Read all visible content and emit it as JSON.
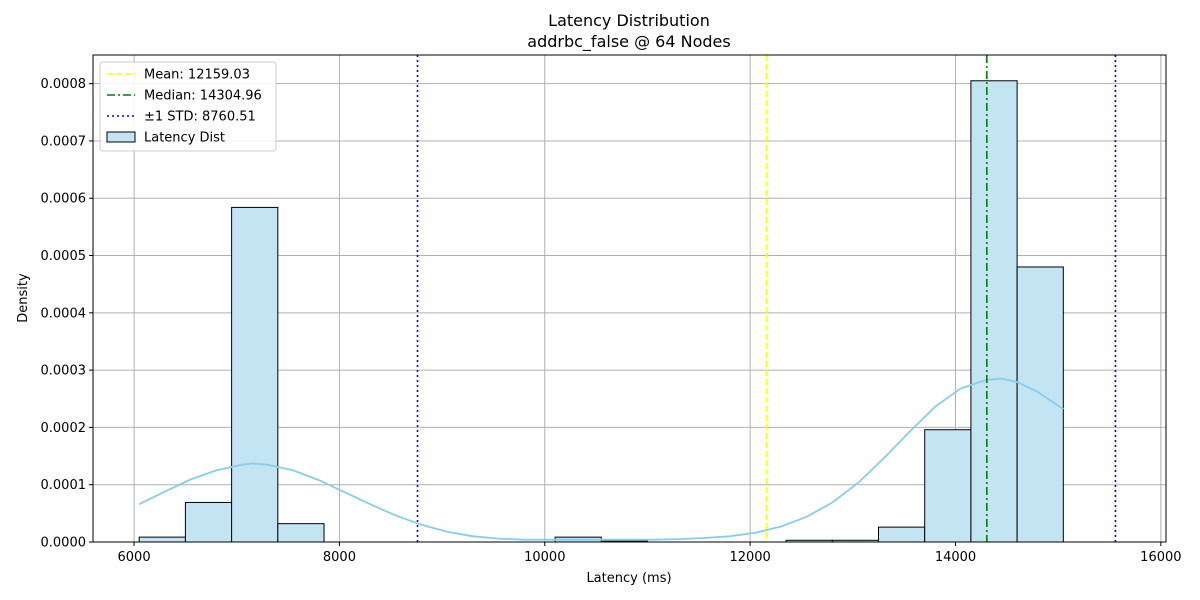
{
  "chart_data": {
    "type": "bar",
    "title": "Latency Distribution",
    "subtitle": "addrbc_false @ 64 Nodes",
    "xlabel": "Latency (ms)",
    "ylabel": "Density",
    "xlim": [
      5600,
      16050
    ],
    "ylim": [
      0,
      0.00085
    ],
    "xticks": [
      6000,
      8000,
      10000,
      12000,
      14000,
      16000
    ],
    "xtick_labels": [
      "6000",
      "8000",
      "10000",
      "12000",
      "14000",
      "16000"
    ],
    "yticks": [
      0,
      0.0001,
      0.0002,
      0.0003,
      0.0004,
      0.0005,
      0.0006,
      0.0007,
      0.0008
    ],
    "ytick_labels": [
      "0.0000",
      "0.0001",
      "0.0002",
      "0.0003",
      "0.0004",
      "0.0005",
      "0.0006",
      "0.0007",
      "0.0008"
    ],
    "grid": true,
    "legend_position": "top-left",
    "histogram": {
      "name": "Latency Dist",
      "fill_color": "#c2e4f3",
      "edge_color": "#000000",
      "bins": [
        {
          "x0": 6050,
          "x1": 6500,
          "density": 8.5e-06
        },
        {
          "x0": 6500,
          "x1": 6950,
          "density": 6.9e-05
        },
        {
          "x0": 6950,
          "x1": 7400,
          "density": 0.000584
        },
        {
          "x0": 7400,
          "x1": 7850,
          "density": 3.2e-05
        },
        {
          "x0": 7850,
          "x1": 8300,
          "density": 0
        },
        {
          "x0": 8300,
          "x1": 8750,
          "density": 0
        },
        {
          "x0": 8750,
          "x1": 9200,
          "density": 0
        },
        {
          "x0": 9200,
          "x1": 9650,
          "density": 0
        },
        {
          "x0": 9650,
          "x1": 10100,
          "density": 0
        },
        {
          "x0": 10100,
          "x1": 10550,
          "density": 8.5e-06
        },
        {
          "x0": 10550,
          "x1": 11000,
          "density": 1.5e-06
        },
        {
          "x0": 11000,
          "x1": 11450,
          "density": 0
        },
        {
          "x0": 11450,
          "x1": 11900,
          "density": 0
        },
        {
          "x0": 11900,
          "x1": 12350,
          "density": 0
        },
        {
          "x0": 12350,
          "x1": 12800,
          "density": 3e-06
        },
        {
          "x0": 12800,
          "x1": 13250,
          "density": 3e-06
        },
        {
          "x0": 13250,
          "x1": 13700,
          "density": 2.6e-05
        },
        {
          "x0": 13700,
          "x1": 14150,
          "density": 0.000196
        },
        {
          "x0": 14150,
          "x1": 14600,
          "density": 0.000805
        },
        {
          "x0": 14600,
          "x1": 15050,
          "density": 0.00048
        }
      ]
    },
    "kde": {
      "color": "#87ceeb",
      "x": [
        6050,
        6300,
        6550,
        6800,
        7050,
        7150,
        7300,
        7550,
        7800,
        8050,
        8300,
        8550,
        8800,
        9050,
        9300,
        9550,
        9800,
        10050,
        10300,
        10550,
        10800,
        11050,
        11300,
        11550,
        11800,
        12050,
        12300,
        12550,
        12800,
        13050,
        13300,
        13550,
        13800,
        14050,
        14300,
        14450,
        14600,
        14800,
        15050
      ],
      "y": [
        6.6e-05,
        8.8e-05,
        0.000109,
        0.000125,
        0.000135,
        0.000137,
        0.000135,
        0.000125,
        0.000108,
        8.7e-05,
        6.6e-05,
        4.6e-05,
        3e-05,
        1.8e-05,
        1e-05,
        6e-06,
        4e-06,
        4e-06,
        4e-06,
        4e-06,
        4e-06,
        4e-06,
        5e-06,
        7e-06,
        1e-05,
        1.6e-05,
        2.7e-05,
        4.4e-05,
        6.9e-05,
        0.000103,
        0.000146,
        0.000192,
        0.000236,
        0.000268,
        0.000283,
        0.000285,
        0.000279,
        0.000262,
        0.000232
      ]
    },
    "lines": [
      {
        "name": "Mean: 12159.03",
        "x": 12159.03,
        "color": "#ffff00",
        "style": "dashed"
      },
      {
        "name": "Median: 14304.96",
        "x": 14304.96,
        "color": "#008000",
        "style": "dashdot"
      },
      {
        "name": "±1 STD: 8760.51",
        "x": 8760.51,
        "color": "#0000ff",
        "style": "dotted"
      },
      {
        "name": "",
        "x": 15557.55,
        "color": "#0000ff",
        "style": "dotted"
      }
    ],
    "legend": [
      {
        "label": "Mean: 12159.03",
        "kind": "line",
        "color": "#ffff00",
        "style": "dashed"
      },
      {
        "label": "Median: 14304.96",
        "kind": "line",
        "color": "#008000",
        "style": "dashdot"
      },
      {
        "label": "±1 STD: 8760.51",
        "kind": "line",
        "color": "#0000ff",
        "style": "dotted"
      },
      {
        "label": "Latency Dist",
        "kind": "patch",
        "color": "#c2e4f3"
      }
    ]
  }
}
